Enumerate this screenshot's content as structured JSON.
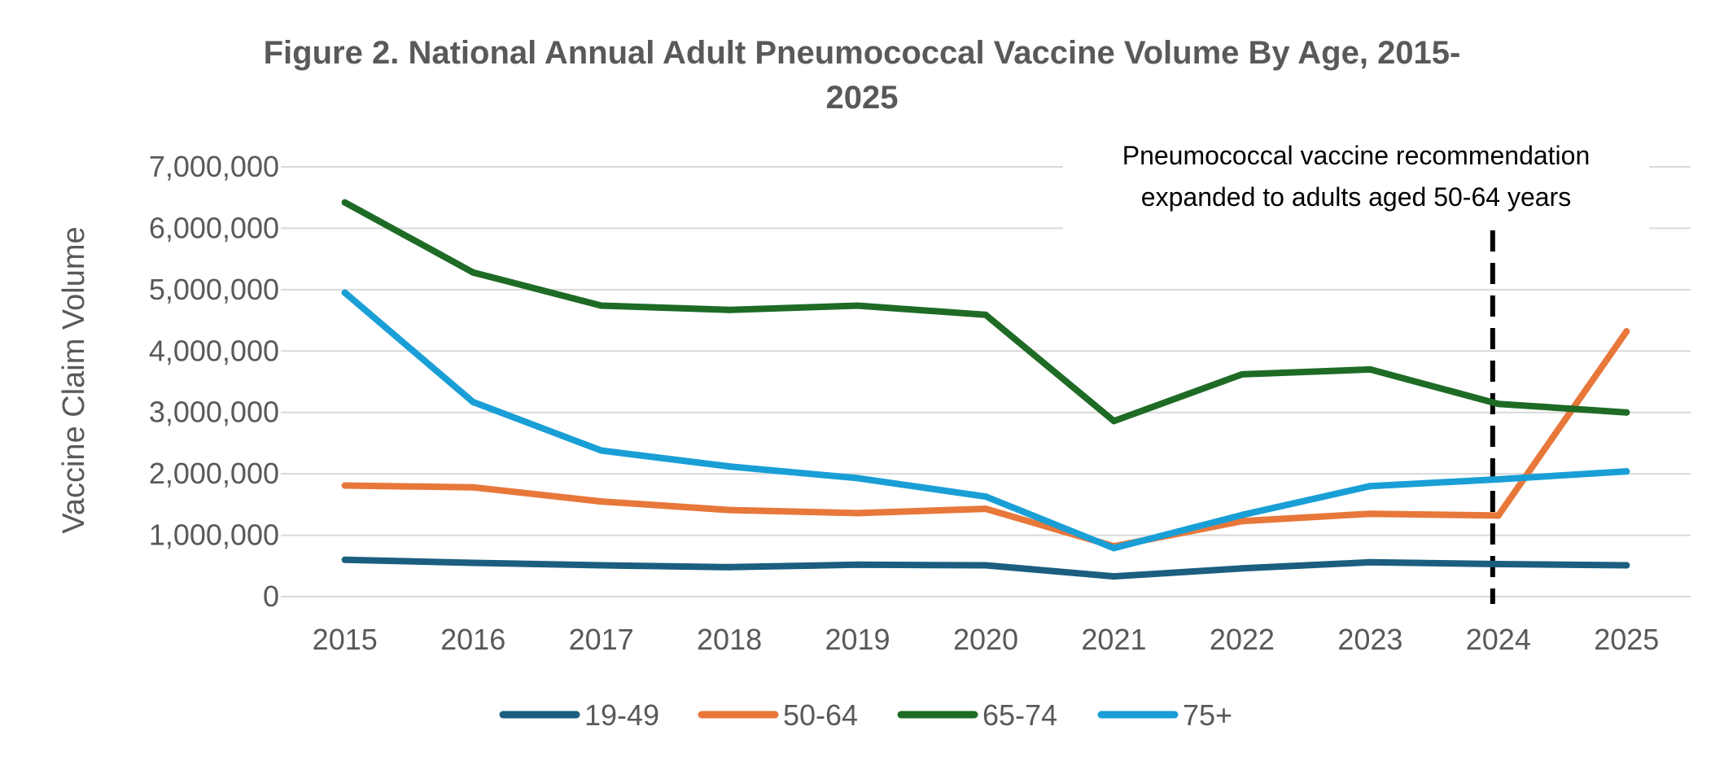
{
  "chart_data": {
    "type": "line",
    "title_lines": [
      "Figure 2. National Annual Adult Pneumococcal Vaccine Volume By Age, 2015-",
      "2025"
    ],
    "ylabel": "Vaccine Claim Volume",
    "xlabel": "",
    "ylim": [
      0,
      7000000
    ],
    "y_ticks": [
      0,
      1000000,
      2000000,
      3000000,
      4000000,
      5000000,
      6000000,
      7000000
    ],
    "y_tick_labels": [
      "0",
      "1,000,000",
      "2,000,000",
      "3,000,000",
      "4,000,000",
      "5,000,000",
      "6,000,000",
      "7,000,000"
    ],
    "categories": [
      "2015",
      "2016",
      "2017",
      "2018",
      "2019",
      "2020",
      "2021",
      "2022",
      "2023",
      "2024",
      "2025"
    ],
    "grid": true,
    "legend_position": "bottom",
    "series": [
      {
        "name": "19-49",
        "color": "#1b5e7f",
        "values": [
          600000,
          550000,
          510000,
          480000,
          520000,
          510000,
          330000,
          460000,
          560000,
          530000,
          510000
        ]
      },
      {
        "name": "50-64",
        "color": "#e8773a",
        "values": [
          1810000,
          1780000,
          1550000,
          1410000,
          1360000,
          1430000,
          820000,
          1230000,
          1350000,
          1320000,
          4320000
        ]
      },
      {
        "name": "65-74",
        "color": "#1e6b25",
        "values": [
          6420000,
          5280000,
          4740000,
          4670000,
          4740000,
          4590000,
          2860000,
          3620000,
          3700000,
          3140000,
          3000000
        ]
      },
      {
        "name": "75+",
        "color": "#199fd6",
        "values": [
          4950000,
          3170000,
          2380000,
          2120000,
          1930000,
          1630000,
          790000,
          1330000,
          1800000,
          1910000,
          2040000
        ]
      }
    ],
    "annotation": {
      "lines": [
        "Pneumococcal vaccine recommendation",
        "expanded to adults aged 50-64 years"
      ],
      "at_category": "2024",
      "line_style": "dashed",
      "color": "#000000"
    }
  }
}
